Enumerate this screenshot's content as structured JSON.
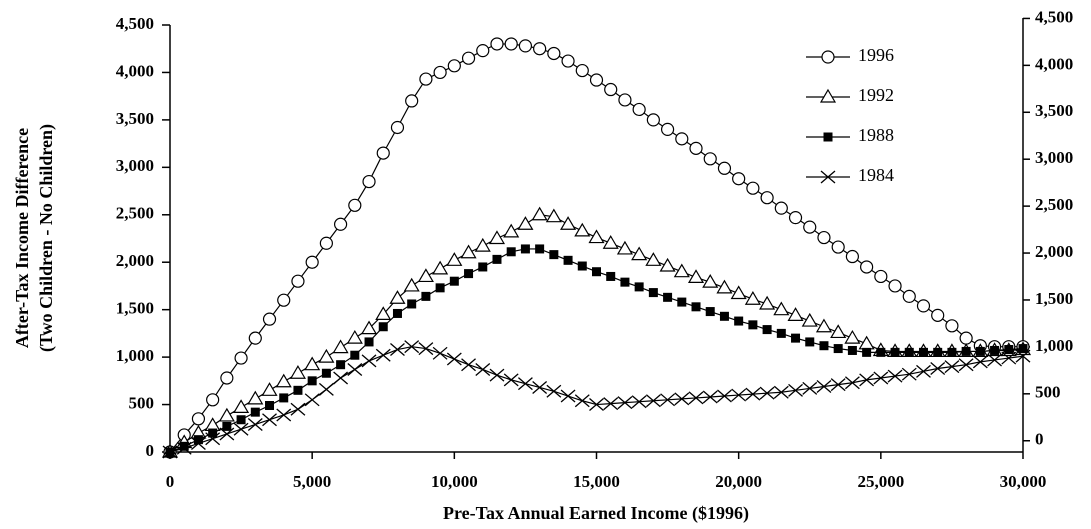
{
  "chart_data": {
    "type": "line",
    "xlabel": "Pre-Tax Annual Earned Income ($1996)",
    "ylabel": [
      "After-Tax Income Difference",
      "(Two Children - No Children)"
    ],
    "x": [
      0,
      500,
      1000,
      1500,
      2000,
      2500,
      3000,
      3500,
      4000,
      4500,
      5000,
      5500,
      6000,
      6500,
      7000,
      7500,
      8000,
      8500,
      9000,
      9500,
      10000,
      10500,
      11000,
      11500,
      12000,
      12500,
      13000,
      13500,
      14000,
      14500,
      15000,
      15500,
      16000,
      16500,
      17000,
      17500,
      18000,
      18500,
      19000,
      19500,
      20000,
      20500,
      21000,
      21500,
      22000,
      22500,
      23000,
      23500,
      24000,
      24500,
      25000,
      25500,
      26000,
      26500,
      27000,
      27500,
      28000,
      28500,
      29000,
      29500,
      30000
    ],
    "series": [
      {
        "name": "1996",
        "color": "#000000",
        "marker": "circle",
        "values": [
          0,
          180,
          350,
          550,
          780,
          990,
          1200,
          1400,
          1600,
          1800,
          2000,
          2200,
          2400,
          2600,
          2850,
          3150,
          3420,
          3700,
          3930,
          4000,
          4070,
          4150,
          4230,
          4300,
          4300,
          4280,
          4250,
          4200,
          4120,
          4020,
          3920,
          3820,
          3710,
          3610,
          3500,
          3400,
          3300,
          3200,
          3090,
          2990,
          2880,
          2780,
          2680,
          2570,
          2470,
          2370,
          2260,
          2160,
          2060,
          1950,
          1850,
          1750,
          1640,
          1540,
          1440,
          1330,
          1200,
          1120,
          1110,
          1110,
          1110
        ]
      },
      {
        "name": "1992",
        "color": "#000000",
        "marker": "triangle",
        "values": [
          0,
          100,
          200,
          280,
          380,
          470,
          560,
          650,
          740,
          830,
          920,
          1000,
          1100,
          1200,
          1300,
          1450,
          1620,
          1750,
          1850,
          1930,
          2020,
          2100,
          2170,
          2250,
          2320,
          2400,
          2500,
          2480,
          2400,
          2330,
          2260,
          2200,
          2140,
          2080,
          2020,
          1960,
          1900,
          1840,
          1790,
          1730,
          1670,
          1610,
          1560,
          1500,
          1440,
          1380,
          1320,
          1260,
          1200,
          1140,
          1070,
          1060,
          1060,
          1060,
          1060,
          1060,
          1060,
          1060,
          1070,
          1070,
          1080
        ]
      },
      {
        "name": "1988",
        "color": "#000000",
        "marker": "square",
        "values": [
          0,
          60,
          130,
          200,
          270,
          340,
          420,
          490,
          570,
          650,
          750,
          830,
          920,
          1020,
          1160,
          1320,
          1460,
          1560,
          1640,
          1730,
          1800,
          1880,
          1950,
          2030,
          2110,
          2140,
          2140,
          2080,
          2020,
          1960,
          1900,
          1850,
          1790,
          1740,
          1680,
          1630,
          1580,
          1530,
          1480,
          1430,
          1380,
          1340,
          1290,
          1250,
          1200,
          1160,
          1120,
          1090,
          1070,
          1050,
          1050,
          1050,
          1050,
          1050,
          1050,
          1050,
          1060,
          1060,
          1070,
          1080,
          1090
        ]
      },
      {
        "name": "1984",
        "color": "#000000",
        "marker": "x",
        "values": [
          0,
          40,
          90,
          140,
          190,
          240,
          290,
          340,
          390,
          450,
          550,
          660,
          780,
          870,
          960,
          1020,
          1080,
          1110,
          1090,
          1040,
          980,
          920,
          870,
          810,
          760,
          720,
          680,
          640,
          590,
          540,
          500,
          510,
          520,
          530,
          540,
          550,
          560,
          570,
          580,
          590,
          600,
          610,
          620,
          630,
          650,
          670,
          690,
          710,
          730,
          760,
          780,
          800,
          820,
          850,
          880,
          900,
          920,
          950,
          970,
          990,
          1010
        ]
      }
    ],
    "xlim": [
      0,
      30000
    ],
    "xticks": [
      0,
      {
        "value": 5000,
        "label": "5,000"
      },
      {
        "value": 10000,
        "label": "10,000"
      },
      {
        "value": 15000,
        "label": "15,000"
      },
      {
        "value": 20000,
        "label": "20,000"
      },
      {
        "value": 25000,
        "label": "25,000"
      },
      {
        "value": 30000,
        "label": "30,000"
      }
    ],
    "ylim": [
      0,
      4500
    ],
    "yticks": [
      0,
      500,
      {
        "value": 1000,
        "label": "1,000"
      },
      {
        "value": 1500,
        "label": "1,500"
      },
      {
        "value": 2000,
        "label": "2,000"
      },
      {
        "value": 2500,
        "label": "2,500"
      },
      {
        "value": 3000,
        "label": "3,000"
      },
      {
        "value": 3500,
        "label": "3,500"
      },
      {
        "value": 4000,
        "label": "4,000"
      },
      {
        "value": 4500,
        "label": "4,500"
      }
    ],
    "y2lim": [
      -120,
      4430
    ],
    "y2ticks": [
      0,
      500,
      {
        "value": 1000,
        "label": "1,000"
      },
      {
        "value": 1500,
        "label": "1,500"
      },
      {
        "value": 2000,
        "label": "2,000"
      },
      {
        "value": 2500,
        "label": "2,500"
      },
      {
        "value": 3000,
        "label": "3,000"
      },
      {
        "value": 3500,
        "label": "3,500"
      },
      {
        "value": 4000,
        "label": "4,000"
      },
      {
        "value": 4500,
        "label": "4,500"
      }
    ],
    "grid": false,
    "legend": "upper-right"
  }
}
